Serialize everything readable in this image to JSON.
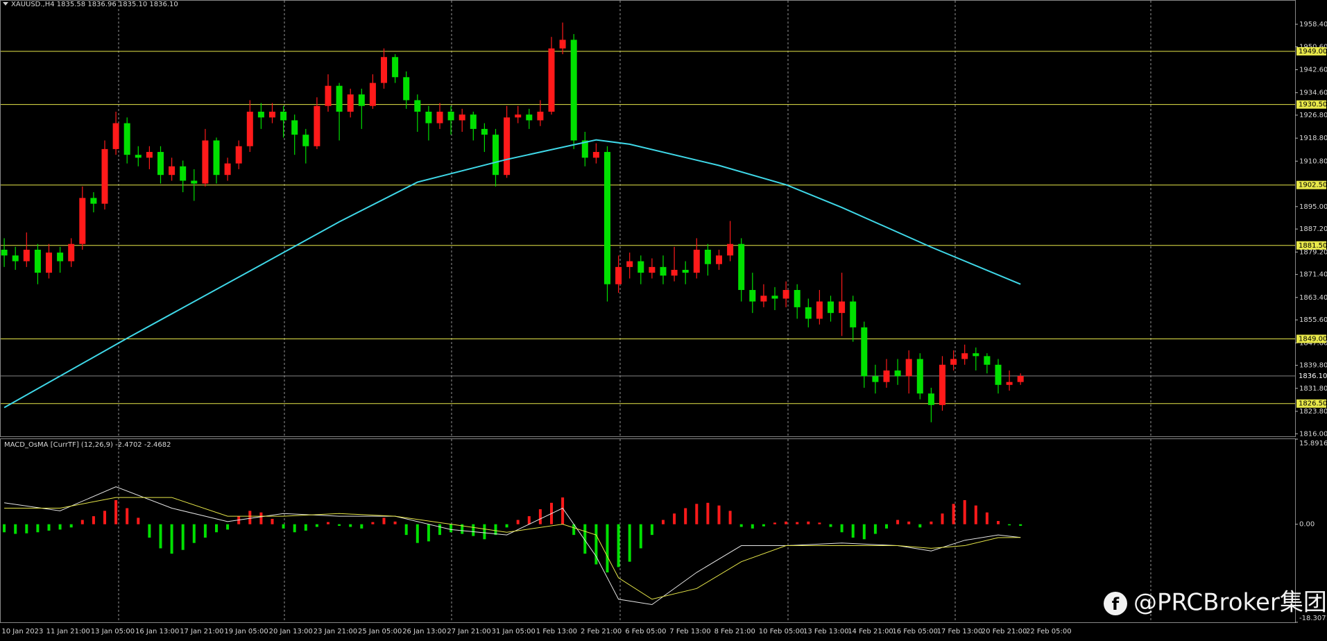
{
  "chart_data": [
    {
      "type": "candlestick",
      "title": "XAUUSD.,H4  1835.58 1836.96 1835.10 1836.10",
      "ylim": [
        1815.1,
        1966.6
      ],
      "yticks": [
        {
          "value": 1958.4,
          "label": "1958.40"
        },
        {
          "value": 1950.6,
          "label": "1950.60"
        },
        {
          "value": 1942.6,
          "label": "1942.60"
        },
        {
          "value": 1934.6,
          "label": "1934.60"
        },
        {
          "value": 1926.8,
          "label": "1926.80"
        },
        {
          "value": 1918.8,
          "label": "1918.80"
        },
        {
          "value": 1910.8,
          "label": "1910.80"
        },
        {
          "value": 1895,
          "label": "1895.00"
        },
        {
          "value": 1887.2,
          "label": "1887.20"
        },
        {
          "value": 1879.2,
          "label": "1879.20"
        },
        {
          "value": 1871.4,
          "label": "1871.40"
        },
        {
          "value": 1863.4,
          "label": "1863.40"
        },
        {
          "value": 1855.6,
          "label": "1855.60"
        },
        {
          "value": 1847.6,
          "label": "1847.60"
        },
        {
          "value": 1839.8,
          "label": "1839.80"
        },
        {
          "value": 1831.8,
          "label": "1831.80"
        },
        {
          "value": 1823.8,
          "label": "1823.80"
        },
        {
          "value": 1816,
          "label": "1816.00"
        }
      ],
      "levels": [
        {
          "value": 1949,
          "label": "1949.00"
        },
        {
          "value": 1930.5,
          "label": "1930.50"
        },
        {
          "value": 1902.5,
          "label": "1902.50"
        },
        {
          "value": 1881.5,
          "label": "1881.50"
        },
        {
          "value": 1849,
          "label": "1849.00"
        },
        {
          "value": 1826.5,
          "label": "1826.50"
        }
      ],
      "level_color": "#e8e84a",
      "current_price": {
        "value": 1836.1,
        "label": "1836.10"
      },
      "up_color": "#ff1a1a",
      "down_color": "#00e000",
      "xtick_labels": [
        "10 Jan 2023",
        "11 Jan 21:00",
        "13 Jan 05:00",
        "16 Jan 13:00",
        "17 Jan 21:00",
        "19 Jan 05:00",
        "20 Jan 13:00",
        "23 Jan 21:00",
        "25 Jan 05:00",
        "26 Jan 13:00",
        "27 Jan 21:00",
        "31 Jan 05:00",
        "1 Feb 13:00",
        "2 Feb 21:00",
        "6 Feb 05:00",
        "7 Feb 13:00",
        "8 Feb 21:00",
        "10 Feb 05:00",
        "13 Feb 13:00",
        "14 Feb 21:00",
        "16 Feb 05:00",
        "17 Feb 13:00",
        "20 Feb 21:00",
        "22 Feb 05:00"
      ],
      "open": [
        1880,
        1878,
        1876,
        1880,
        1872,
        1879,
        1876,
        1882,
        1898,
        1896,
        1915,
        1924,
        1913,
        1912,
        1914,
        1906,
        1909,
        1904,
        1903,
        1918,
        1906,
        1910,
        1916,
        1928,
        1926,
        1928,
        1925,
        1920,
        1916,
        1930,
        1937,
        1928,
        1934,
        1930,
        1938,
        1947,
        1940,
        1932,
        1928,
        1924,
        1928,
        1925,
        1927,
        1922,
        1920,
        1906,
        1926,
        1927,
        1925,
        1928,
        1950,
        1953,
        1918,
        1912,
        1914,
        1868,
        1874,
        1876,
        1872,
        1874,
        1871,
        1873,
        1872,
        1880,
        1875,
        1878,
        1882,
        1866,
        1862,
        1864,
        1863,
        1866,
        1860,
        1856,
        1862,
        1858,
        1862,
        1853,
        1836,
        1834,
        1838,
        1836,
        1842,
        1830,
        1826,
        1840,
        1842,
        1844,
        1843,
        1840,
        1833,
        1834
      ],
      "high": [
        1884,
        1881,
        1886,
        1882,
        1882,
        1881,
        1884,
        1902,
        1900,
        1918,
        1928,
        1926,
        1916,
        1916,
        1916,
        1912,
        1911,
        1908,
        1922,
        1919,
        1912,
        1918,
        1932,
        1931,
        1931,
        1930,
        1927,
        1922,
        1933,
        1941,
        1938,
        1936,
        1936,
        1941,
        1950,
        1948,
        1942,
        1934,
        1930,
        1931,
        1930,
        1929,
        1928,
        1924,
        1922,
        1930,
        1930,
        1929,
        1932,
        1954,
        1959,
        1955,
        1921,
        1917,
        1916,
        1878,
        1879,
        1878,
        1877,
        1878,
        1881,
        1876,
        1884,
        1882,
        1880,
        1890,
        1884,
        1872,
        1868,
        1867,
        1869,
        1868,
        1863,
        1866,
        1864,
        1872,
        1864,
        1855,
        1840,
        1842,
        1842,
        1845,
        1844,
        1832,
        1843,
        1845,
        1847,
        1846,
        1844,
        1842,
        1838,
        1837
      ],
      "low": [
        1874,
        1873,
        1874,
        1868,
        1870,
        1872,
        1874,
        1880,
        1893,
        1894,
        1913,
        1910,
        1909,
        1908,
        1903,
        1904,
        1900,
        1897,
        1902,
        1903,
        1904,
        1908,
        1914,
        1922,
        1924,
        1919,
        1913,
        1910,
        1915,
        1928,
        1918,
        1926,
        1922,
        1929,
        1936,
        1938,
        1929,
        1921,
        1918,
        1922,
        1920,
        1921,
        1918,
        1914,
        1902,
        1905,
        1924,
        1922,
        1923,
        1927,
        1948,
        1915,
        1909,
        1910,
        1862,
        1865,
        1870,
        1868,
        1870,
        1868,
        1869,
        1868,
        1870,
        1871,
        1873,
        1876,
        1862,
        1858,
        1860,
        1859,
        1860,
        1856,
        1853,
        1854,
        1855,
        1850,
        1848,
        1832,
        1830,
        1832,
        1833,
        1830,
        1828,
        1820,
        1824,
        1838,
        1840,
        1838,
        1837,
        1830,
        1831,
        1833
      ],
      "close": [
        1878,
        1876,
        1880,
        1872,
        1879,
        1876,
        1882,
        1898,
        1896,
        1915,
        1924,
        1913,
        1912,
        1914,
        1906,
        1909,
        1904,
        1903,
        1918,
        1906,
        1910,
        1916,
        1928,
        1926,
        1928,
        1925,
        1920,
        1916,
        1930,
        1937,
        1928,
        1934,
        1930,
        1938,
        1947,
        1940,
        1932,
        1928,
        1924,
        1928,
        1925,
        1927,
        1922,
        1920,
        1906,
        1926,
        1927,
        1925,
        1928,
        1950,
        1953,
        1918,
        1912,
        1914,
        1868,
        1874,
        1876,
        1872,
        1874,
        1871,
        1873,
        1872,
        1880,
        1875,
        1878,
        1882,
        1866,
        1862,
        1864,
        1863,
        1866,
        1860,
        1856,
        1862,
        1858,
        1862,
        1853,
        1836,
        1834,
        1838,
        1836,
        1842,
        1830,
        1826,
        1840,
        1842,
        1844,
        1843,
        1840,
        1833,
        1834,
        1836.1
      ],
      "ma": {
        "color": "#3fd8e8",
        "x": [
          0,
          11,
          22,
          30,
          37,
          45,
          53,
          56,
          64,
          70,
          75,
          83,
          91
        ],
        "values": [
          1825.1,
          1849.2,
          1872.6,
          1889.7,
          1903.5,
          1911.4,
          1918.2,
          1916.7,
          1909.3,
          1902.6,
          1894.7,
          1880.9,
          1868
        ]
      },
      "watermark": "@PRCBroker集团"
    },
    {
      "type": "macd",
      "title": "MACD_OsMA [CurrTF] (12,26,9) -2.4702 -2.4682",
      "ylim": [
        -18.3071,
        15.8916
      ],
      "yticks": [
        15.8916,
        {
          "value": 0,
          "label": "0.00"
        },
        -18.3071
      ],
      "pos_color": "#ff1a1a",
      "neg_color": "#00e000",
      "values": [
        -1.5,
        -1.8,
        -1.7,
        -1.5,
        -1.2,
        -1.0,
        -0.6,
        0.8,
        1.5,
        2.5,
        4.5,
        3.0,
        1.2,
        -2.5,
        -4.5,
        -5.5,
        -4.8,
        -3.5,
        -2.5,
        -1.5,
        -1.0,
        1.5,
        2.5,
        2.2,
        1.0,
        -0.8,
        -1.5,
        -1.2,
        -0.5,
        0.4,
        -0.3,
        -0.5,
        -0.8,
        0.4,
        1.2,
        0.5,
        -2.0,
        -3.5,
        -3.2,
        -2.0,
        -1.5,
        -1.8,
        -2.2,
        -2.8,
        -2.0,
        -0.6,
        0.8,
        1.5,
        2.8,
        4.0,
        5.0,
        -2.0,
        -5.5,
        -7.5,
        -9.0,
        -8.0,
        -7.0,
        -4.5,
        -2.0,
        0.8,
        2.0,
        3.0,
        3.8,
        4.0,
        3.5,
        2.5,
        -0.5,
        -0.8,
        -0.4,
        0.3,
        0.5,
        0.4,
        0.5,
        0.3,
        -0.5,
        -1.5,
        -2.5,
        -2.8,
        -1.8,
        -0.8,
        0.8,
        0.5,
        -0.6,
        0.5,
        2.0,
        3.8,
        4.5,
        3.5,
        2.2,
        0.6,
        -0.2,
        -0.3
      ],
      "lines": [
        {
          "color": "#e6e6e6",
          "x": [
            0,
            5,
            10,
            15,
            20,
            25,
            30,
            35,
            40,
            45,
            50,
            53,
            55,
            58,
            62,
            66,
            70,
            75,
            80,
            83,
            86,
            89,
            91
          ],
          "values": [
            4,
            2.5,
            7,
            3,
            0.5,
            2,
            1.5,
            1.5,
            -1,
            -2,
            3,
            -6,
            -14,
            -15,
            -9,
            -4,
            -4,
            -3.5,
            -4,
            -5,
            -3,
            -2,
            -2.4702
          ]
        },
        {
          "color": "#e8e84a",
          "x": [
            0,
            5,
            10,
            15,
            20,
            25,
            30,
            35,
            40,
            45,
            50,
            53,
            55,
            58,
            62,
            66,
            70,
            75,
            80,
            83,
            86,
            89,
            91
          ],
          "values": [
            3,
            3,
            5,
            5,
            1.5,
            1.5,
            2,
            1.5,
            0,
            -1.5,
            0,
            -2,
            -10,
            -14,
            -12,
            -7,
            -4,
            -4,
            -4,
            -4.5,
            -4,
            -2.5,
            -2.4682
          ]
        }
      ]
    }
  ]
}
